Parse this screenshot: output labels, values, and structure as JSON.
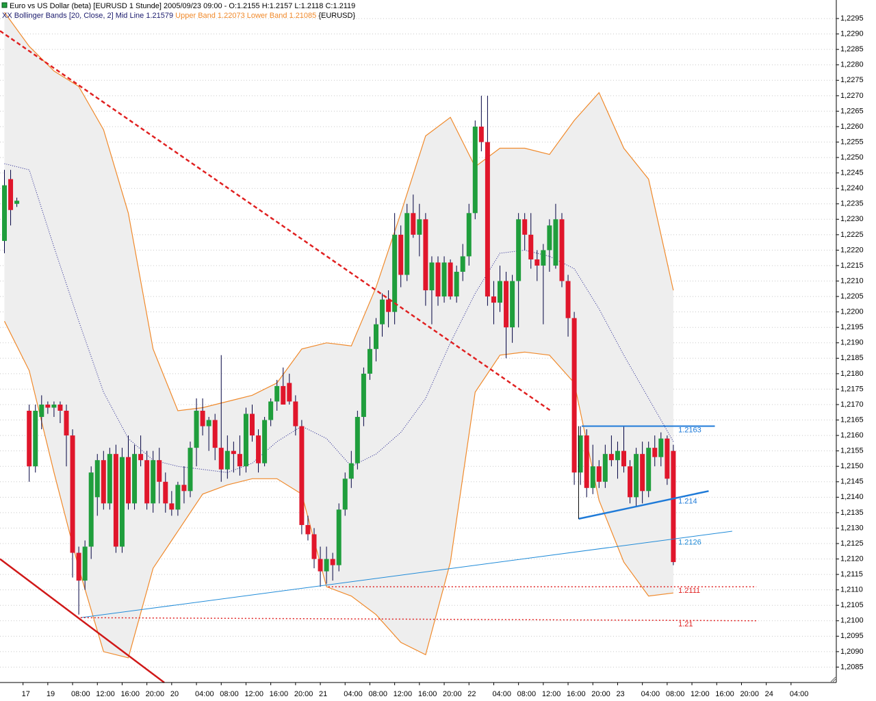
{
  "chart_data": {
    "type": "candlestick",
    "title": "Euro vs US Dollar (beta) [EURUSD  1 Stunde] 2005/09/23 09:00 - O:1.2155 H:1.2157 L:1.2118 C:1.2119",
    "subtitle": {
      "indicator": "XX Bollinger Bands [20, Close, 2] Mid Line 1.21579",
      "bands": "Upper Band 1.22073 Lower Band 1.21085",
      "symbol": "{EURUSD}"
    },
    "categories": [
      null,
      null,
      null,
      "17",
      null,
      null,
      null,
      "19",
      null,
      null,
      null,
      "08:00",
      null,
      null,
      null,
      "12:00",
      null,
      null,
      null,
      "16:00",
      null,
      null,
      null,
      "20:00",
      null,
      null,
      null,
      "20",
      null,
      null,
      null,
      "04:00",
      null,
      null,
      null,
      "08:00",
      null,
      null,
      null,
      "12:00",
      null,
      null,
      null,
      "16:00",
      null,
      null,
      null,
      "20:00",
      null,
      null,
      null,
      "21",
      null,
      null,
      null,
      "04:00",
      null,
      null,
      null,
      "08:00",
      null,
      null,
      null,
      "12:00",
      null,
      null,
      null,
      "16:00",
      null,
      null,
      null,
      "20:00",
      null,
      null,
      null,
      "22",
      null,
      null,
      null,
      "04:00",
      null,
      null,
      null,
      "08:00",
      null,
      null,
      null,
      "12:00",
      null,
      null,
      null,
      "16:00",
      null,
      null,
      null,
      "20:00",
      null,
      null,
      null,
      "23",
      null,
      null,
      null,
      "04:00",
      null,
      null,
      null,
      "08:00",
      null,
      null,
      null,
      "12:00",
      null,
      null,
      null,
      "16:00",
      null,
      null,
      null,
      "20:00",
      null,
      null,
      null,
      "24",
      null,
      null,
      null,
      "04:00"
    ],
    "open": [
      1.2223,
      1.2243,
      1.2235,
      null,
      1.2168,
      1.215,
      1.2166,
      1.217,
      1.2169,
      1.217,
      1.2168,
      1.216,
      1.2122,
      1.2113,
      1.2124,
      1.214,
      1.2152,
      1.2138,
      1.2154,
      1.2124,
      1.2153,
      1.2138,
      1.2154,
      1.2152,
      1.2138,
      1.2152,
      1.2145,
      1.2138,
      1.2136,
      1.2144,
      1.2142,
      1.2156,
      1.2168,
      1.2163,
      1.2165,
      1.2156,
      1.2149,
      1.2155,
      1.2154,
      1.215,
      1.2167,
      1.216,
      1.2151,
      1.2165,
      1.2171,
      1.2176,
      1.2177,
      1.2171,
      1.2163,
      1.2131,
      1.2128,
      1.212,
      1.2116,
      1.212,
      1.2118,
      1.2136,
      1.2146,
      1.2151,
      1.2166,
      1.218,
      1.2188,
      1.2196,
      1.2204,
      1.22,
      1.2225,
      1.2212,
      1.2232,
      1.2225,
      1.223,
      1.2207,
      1.2216,
      1.2205,
      1.2216,
      1.2205,
      1.2213,
      1.2218,
      1.2232,
      1.226,
      1.2255,
      1.2205,
      1.2203,
      1.221,
      1.2195,
      1.221,
      1.223,
      1.2225,
      1.2217,
      1.2215,
      1.222,
      1.2215,
      1.223,
      1.221,
      1.2198,
      1.2148,
      1.216,
      1.2143,
      1.215,
      1.2145,
      1.2154,
      1.2152,
      1.2155,
      1.215,
      1.214,
      1.2154,
      1.2142,
      1.2156,
      1.2153,
      1.2159,
      1.2155,
      null,
      null,
      null,
      null,
      null,
      null,
      null,
      null,
      null,
      null,
      null,
      null,
      null,
      null,
      null,
      null,
      null,
      null,
      null
    ],
    "high": [
      1.2246,
      1.2246,
      1.2237,
      null,
      1.217,
      1.217,
      1.2173,
      1.2171,
      1.2171,
      1.2171,
      1.217,
      1.2162,
      1.2124,
      1.2126,
      1.215,
      1.2154,
      1.2155,
      1.2156,
      1.2157,
      1.2156,
      1.216,
      1.2157,
      1.216,
      1.2155,
      1.2155,
      1.2156,
      1.2148,
      1.2142,
      1.2145,
      1.215,
      1.2158,
      1.2172,
      1.2172,
      1.2166,
      1.2167,
      1.2186,
      1.216,
      1.2158,
      1.216,
      1.2169,
      1.217,
      1.2162,
      1.2166,
      1.2172,
      1.2178,
      1.2182,
      1.218,
      1.2173,
      1.2165,
      1.2134,
      1.213,
      1.2124,
      1.2124,
      1.2122,
      1.2138,
      1.2148,
      1.2155,
      1.2168,
      1.2182,
      1.2192,
      1.2198,
      1.2206,
      1.2207,
      1.2232,
      1.2228,
      1.2235,
      1.2238,
      1.2235,
      1.2232,
      1.2218,
      1.2218,
      1.2218,
      1.2217,
      1.2215,
      1.2222,
      1.2235,
      1.2262,
      1.227,
      1.227,
      1.221,
      1.2215,
      1.2213,
      1.2212,
      1.2232,
      1.2232,
      1.2232,
      1.222,
      1.2222,
      1.223,
      1.2235,
      1.2232,
      1.2212,
      1.22,
      1.2163,
      1.2162,
      1.2157,
      1.2152,
      1.2157,
      1.216,
      1.2158,
      1.2163,
      1.2152,
      1.2156,
      1.2158,
      1.2158,
      1.216,
      1.2161,
      1.216,
      1.2157,
      null,
      null,
      null,
      null,
      null,
      null,
      null,
      null,
      null,
      null,
      null,
      null,
      null,
      null,
      null,
      null,
      null,
      null,
      null
    ],
    "low": [
      1.2219,
      1.2228,
      1.2234,
      null,
      1.2145,
      1.2148,
      1.2162,
      1.2167,
      1.2166,
      1.2164,
      1.215,
      1.2114,
      1.2102,
      1.211,
      1.212,
      1.2134,
      1.2136,
      1.2136,
      1.2122,
      1.2122,
      1.2136,
      1.2136,
      1.215,
      1.2136,
      1.2135,
      1.2138,
      1.2135,
      1.2134,
      1.2134,
      1.2138,
      1.214,
      1.215,
      1.216,
      1.2155,
      1.2152,
      1.2145,
      1.2146,
      1.2148,
      1.2147,
      1.2148,
      1.2158,
      1.2148,
      1.215,
      1.2163,
      1.2168,
      1.217,
      1.217,
      1.216,
      1.2128,
      1.2126,
      1.2117,
      1.2111,
      1.2112,
      1.2113,
      1.2116,
      1.2134,
      1.2143,
      1.2149,
      1.2163,
      1.2178,
      1.2184,
      1.2192,
      1.2195,
      1.2196,
      1.2208,
      1.221,
      1.2224,
      1.2218,
      1.2202,
      1.2196,
      1.2202,
      1.2203,
      1.2204,
      1.2203,
      1.221,
      1.2215,
      1.223,
      1.2252,
      1.2202,
      1.2196,
      1.22,
      1.2185,
      1.219,
      1.2195,
      1.222,
      1.2214,
      1.221,
      1.2196,
      1.2213,
      1.2214,
      1.2208,
      1.2192,
      1.2144,
      1.2144,
      1.214,
      1.2141,
      1.2143,
      1.2143,
      1.215,
      1.2146,
      1.2148,
      1.2138,
      1.2137,
      1.2138,
      1.214,
      1.215,
      1.215,
      1.2144,
      1.2118,
      null,
      null,
      null,
      null,
      null,
      null,
      null,
      null,
      null,
      null,
      null,
      null,
      null,
      null,
      null,
      null,
      null,
      null,
      null
    ],
    "close": [
      1.2241,
      1.2233,
      1.2236,
      null,
      1.215,
      1.2168,
      1.217,
      1.2169,
      1.217,
      1.2168,
      1.216,
      1.2122,
      1.2113,
      1.2124,
      1.2148,
      1.2152,
      1.2138,
      1.2154,
      1.2124,
      1.2153,
      1.2138,
      1.2154,
      1.2152,
      1.2138,
      1.2152,
      1.2145,
      1.2138,
      1.2136,
      1.2144,
      1.2142,
      1.2156,
      1.2168,
      1.2163,
      1.2165,
      1.2156,
      1.2149,
      1.2155,
      1.2154,
      1.215,
      1.2167,
      1.216,
      1.2151,
      1.2165,
      1.2171,
      1.2176,
      1.217,
      1.2171,
      1.2163,
      1.2131,
      1.2128,
      1.212,
      1.2116,
      1.212,
      1.2118,
      1.2136,
      1.2146,
      1.2151,
      1.2166,
      1.218,
      1.2188,
      1.2196,
      1.2204,
      1.22,
      1.2225,
      1.2212,
      1.2232,
      1.2225,
      1.223,
      1.2207,
      1.2216,
      1.2205,
      1.2216,
      1.2205,
      1.2213,
      1.2218,
      1.2232,
      1.226,
      1.2255,
      1.2205,
      1.2203,
      1.221,
      1.2195,
      1.221,
      1.223,
      1.2225,
      1.2217,
      1.2215,
      1.222,
      1.2228,
      1.223,
      1.221,
      1.2198,
      1.2148,
      1.216,
      1.2143,
      1.215,
      1.2145,
      1.2154,
      1.2152,
      1.2155,
      1.215,
      1.214,
      1.2154,
      1.2142,
      1.2156,
      1.2153,
      1.2159,
      1.2146,
      1.2119,
      null,
      null,
      null,
      null,
      null,
      null,
      null,
      null,
      null,
      null,
      null,
      null,
      null,
      null,
      null,
      null,
      null,
      null,
      null
    ],
    "up_color": "#1f9e3c",
    "down_color": "#e0162b",
    "wick_color": "#000040",
    "bands": {
      "x": [
        0,
        4,
        8,
        12,
        16,
        20,
        24,
        28,
        32,
        36,
        40,
        44,
        48,
        52,
        56,
        60,
        64,
        68,
        72,
        76,
        80,
        84,
        88,
        92,
        96,
        100,
        104,
        108
      ],
      "upper": [
        1.2297,
        1.2286,
        1.2278,
        1.2273,
        1.2259,
        1.2232,
        1.2188,
        1.2168,
        1.2169,
        1.2171,
        1.2173,
        1.2177,
        1.2188,
        1.219,
        1.2189,
        1.2208,
        1.2232,
        1.2257,
        1.2263,
        1.2247,
        1.2253,
        1.2253,
        1.2251,
        1.2262,
        1.2271,
        1.2253,
        1.2243,
        1.2207
      ],
      "lower": [
        1.2197,
        1.2181,
        1.2148,
        1.2117,
        1.209,
        1.2088,
        1.2117,
        1.2129,
        1.2141,
        1.2144,
        1.2146,
        1.2146,
        1.2141,
        1.2111,
        1.2108,
        1.2102,
        1.2093,
        1.2089,
        1.2119,
        1.2174,
        1.2186,
        1.2187,
        1.2186,
        1.2177,
        1.2139,
        1.2119,
        1.2108,
        1.2109
      ],
      "mid": [
        1.2248,
        1.2246,
        1.2221,
        1.2197,
        1.2174,
        1.2159,
        1.2152,
        1.215,
        1.2149,
        1.2148,
        1.2151,
        1.2158,
        1.2163,
        1.2159,
        1.215,
        1.2154,
        1.2161,
        1.2172,
        1.219,
        1.2206,
        1.2219,
        1.222,
        1.2218,
        1.2214,
        1.2201,
        1.2186,
        1.2172,
        1.2158
      ],
      "color": "#f0892a",
      "fill": "#eeeeee",
      "mid_color": "#1a1a8c"
    },
    "lines": [
      {
        "x": [
          -0.72,
          88.2
        ],
        "values": [
          1.2291,
          1.2168
        ],
        "color": "#e02020",
        "style": "dashed",
        "width": 2.5
      },
      {
        "x": [
          -0.72,
          25.8
        ],
        "values": [
          1.212,
          1.208
        ],
        "color": "#d01818",
        "style": "solid",
        "width": 2.5
      },
      {
        "x": [
          12.3,
          117.5
        ],
        "values": [
          1.2101,
          1.2129
        ],
        "color": "#1e8ad8",
        "style": "solid",
        "width": 1,
        "label": "1.2126"
      },
      {
        "x": [
          93.2,
          114.7
        ],
        "values": [
          1.2163,
          1.2163
        ],
        "color": "#1e7ad8",
        "style": "solid",
        "width": 2,
        "label": "1.2163"
      },
      {
        "x": [
          92.7,
          113.7
        ],
        "values": [
          1.2133,
          1.2142
        ],
        "color": "#1e7ad8",
        "style": "solid",
        "width": 2.5,
        "label": "1.214"
      },
      {
        "x": [
          92.7,
          92.7
        ],
        "values": [
          1.2163,
          1.2133
        ],
        "color": "#000000",
        "style": "solid",
        "width": 1
      },
      {
        "x": [
          52.3,
          121.4
        ],
        "values": [
          1.2111,
          1.2111
        ],
        "color": "#e02020",
        "style": "dotted",
        "width": 1.5,
        "label": "1.2111"
      },
      {
        "x": [
          12.3,
          121.4
        ],
        "values": [
          1.2101,
          1.21
        ],
        "color": "#e02020",
        "style": "dotted",
        "width": 1.5,
        "label": "1.21"
      }
    ],
    "ylim": [
      1.208,
      1.2301
    ],
    "yticks": [
      {
        "value": 1.2085,
        "label": "1,2085"
      },
      {
        "value": 1.209,
        "label": "1,2090"
      },
      {
        "value": 1.2095,
        "label": "1,2095"
      },
      {
        "value": 1.21,
        "label": "1,2100"
      },
      {
        "value": 1.2105,
        "label": "1,2105"
      },
      {
        "value": 1.211,
        "label": "1,2110"
      },
      {
        "value": 1.2115,
        "label": "1,2115"
      },
      {
        "value": 1.212,
        "label": "1,2120"
      },
      {
        "value": 1.2125,
        "label": "1,2125"
      },
      {
        "value": 1.213,
        "label": "1,2130"
      },
      {
        "value": 1.2135,
        "label": "1,2135"
      },
      {
        "value": 1.214,
        "label": "1,2140"
      },
      {
        "value": 1.2145,
        "label": "1,2145"
      },
      {
        "value": 1.215,
        "label": "1,2150"
      },
      {
        "value": 1.2155,
        "label": "1,2155"
      },
      {
        "value": 1.216,
        "label": "1,2160"
      },
      {
        "value": 1.2165,
        "label": "1,2165"
      },
      {
        "value": 1.217,
        "label": "1,2170"
      },
      {
        "value": 1.2175,
        "label": "1,2175"
      },
      {
        "value": 1.218,
        "label": "1,2180"
      },
      {
        "value": 1.2185,
        "label": "1,2185"
      },
      {
        "value": 1.219,
        "label": "1,2190"
      },
      {
        "value": 1.2195,
        "label": "1,2195"
      },
      {
        "value": 1.22,
        "label": "1,2200"
      },
      {
        "value": 1.2205,
        "label": "1,2205"
      },
      {
        "value": 1.221,
        "label": "1,2210"
      },
      {
        "value": 1.2215,
        "label": "1,2215"
      },
      {
        "value": 1.222,
        "label": "1,2220"
      },
      {
        "value": 1.2225,
        "label": "1,2225"
      },
      {
        "value": 1.223,
        "label": "1,2230"
      },
      {
        "value": 1.2235,
        "label": "1,2235"
      },
      {
        "value": 1.224,
        "label": "1,2240"
      },
      {
        "value": 1.2245,
        "label": "1,2245"
      },
      {
        "value": 1.225,
        "label": "1,2250"
      },
      {
        "value": 1.2255,
        "label": "1,2255"
      },
      {
        "value": 1.226,
        "label": "1,2260"
      },
      {
        "value": 1.2265,
        "label": "1,2265"
      },
      {
        "value": 1.227,
        "label": "1,2270"
      },
      {
        "value": 1.2275,
        "label": "1,2275"
      },
      {
        "value": 1.228,
        "label": "1,2280"
      },
      {
        "value": 1.2285,
        "label": "1,2285"
      },
      {
        "value": 1.229,
        "label": "1,2290"
      },
      {
        "value": 1.2295,
        "label": "1,2295"
      }
    ],
    "grid": true
  }
}
